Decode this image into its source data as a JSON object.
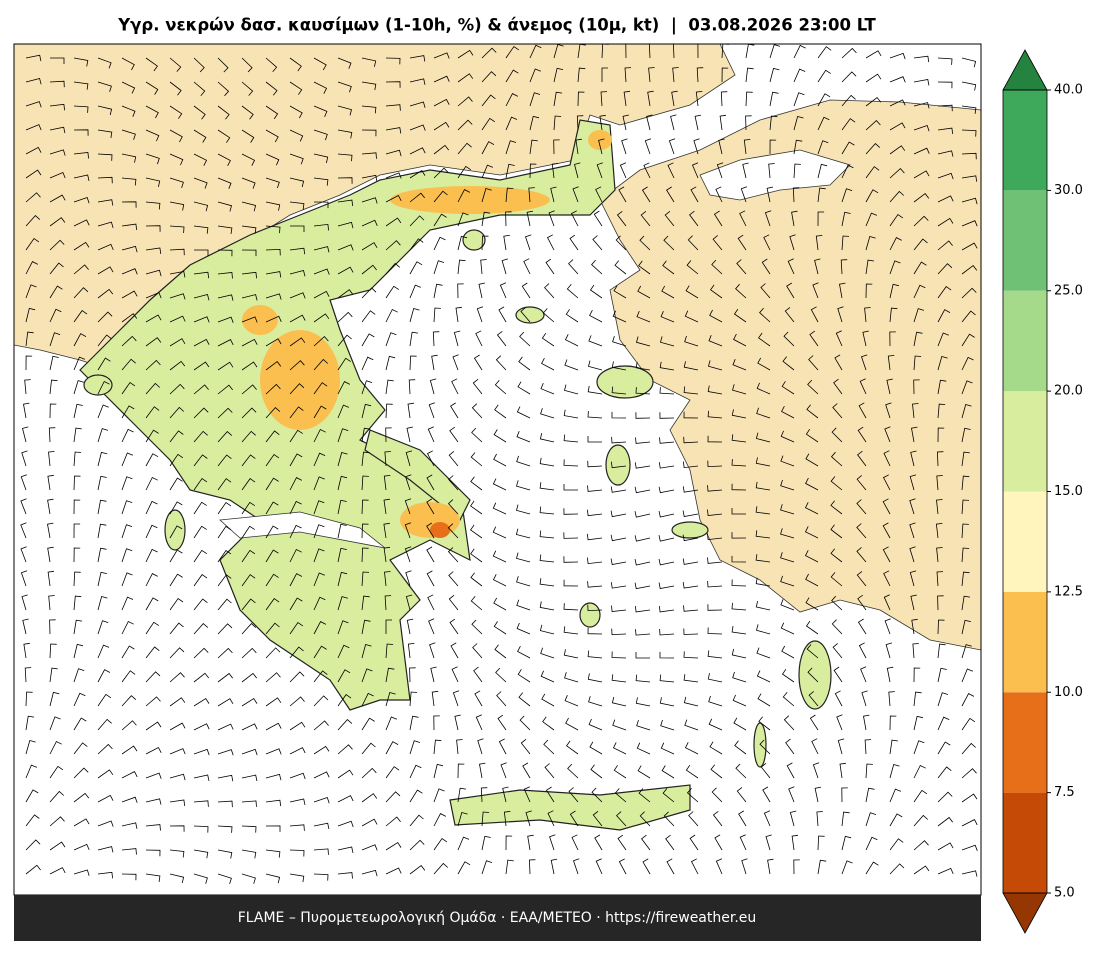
{
  "header": {
    "title": "Υγρ. νεκρών δασ. καυσίμων (1-10h, %) & άνεμος (10μ, kt)  |  03.08.2026 23:00 LT"
  },
  "footer": "FLAME – Πυρομετεωρολογική Ομάδα · ΕΑΑ/METEO · https://fireweather.eu",
  "colorbar": {
    "ticks": [
      {
        "value": 5,
        "label": "5.0"
      },
      {
        "value": 7.5,
        "label": "7.5"
      },
      {
        "value": 10,
        "label": "10.0"
      },
      {
        "value": 12.5,
        "label": "12.5"
      },
      {
        "value": 15,
        "label": "15.0"
      },
      {
        "value": 20,
        "label": "20.0"
      },
      {
        "value": 25,
        "label": "25.0"
      },
      {
        "value": 30,
        "label": "30.0"
      },
      {
        "value": 40,
        "label": "40.0"
      }
    ],
    "colors": [
      "#c44a05",
      "#e86f19",
      "#fbbf4f",
      "#fff5bd",
      "#d8ed9e",
      "#a6da8b",
      "#6fc275",
      "#3ea95b"
    ],
    "under_color": "#963703",
    "over_color": "#23833f"
  }
}
